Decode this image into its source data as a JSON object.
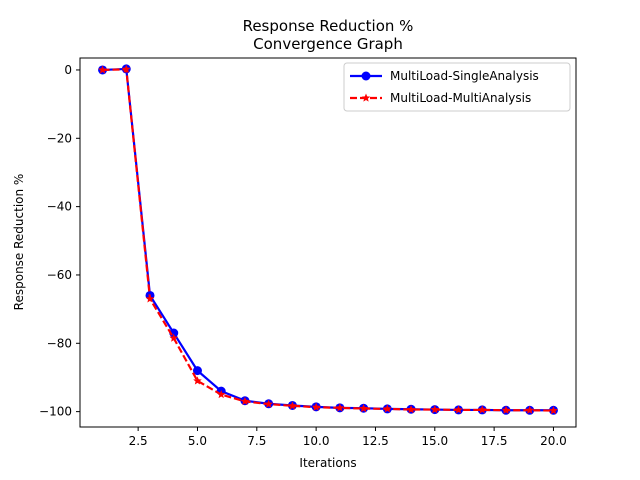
{
  "chart_data": {
    "type": "line",
    "title": "Response Reduction %",
    "subtitle": "Convergence Graph",
    "xlabel": "Iterations",
    "ylabel": "Response Reduction %",
    "xlim": [
      0.05,
      20.95
    ],
    "ylim": [
      -104.5,
      3.5
    ],
    "xticks": [
      2.5,
      5.0,
      7.5,
      10.0,
      12.5,
      15.0,
      17.5,
      20.0
    ],
    "xtick_labels": [
      "2.5",
      "5.0",
      "7.5",
      "10.0",
      "12.5",
      "15.0",
      "17.5",
      "20.0"
    ],
    "yticks": [
      0,
      -20,
      -40,
      -60,
      -80,
      -100
    ],
    "ytick_labels": [
      "0",
      "−20",
      "−40",
      "−60",
      "−80",
      "−100"
    ],
    "grid": false,
    "legend_position": "top-right",
    "x": [
      1,
      2,
      3,
      4,
      5,
      6,
      7,
      8,
      9,
      10,
      11,
      12,
      13,
      14,
      15,
      16,
      17,
      18,
      19,
      20
    ],
    "series": [
      {
        "name": "MultiLoad-SingleAnalysis",
        "color": "#0000ff",
        "line_style": "solid",
        "marker": "circle",
        "values": [
          0,
          0.3,
          -66,
          -77,
          -88,
          -94,
          -96.8,
          -97.7,
          -98.2,
          -98.6,
          -98.9,
          -99.0,
          -99.2,
          -99.3,
          -99.4,
          -99.5,
          -99.5,
          -99.6,
          -99.6,
          -99.6
        ]
      },
      {
        "name": "MultiLoad-MultiAnalysis",
        "color": "#ff0000",
        "line_style": "dashed",
        "marker": "star",
        "values": [
          0,
          0.2,
          -67,
          -78.5,
          -91,
          -95,
          -97,
          -97.8,
          -98.3,
          -98.7,
          -98.9,
          -99.1,
          -99.2,
          -99.4,
          -99.4,
          -99.5,
          -99.5,
          -99.6,
          -99.6,
          -99.7
        ]
      }
    ]
  }
}
